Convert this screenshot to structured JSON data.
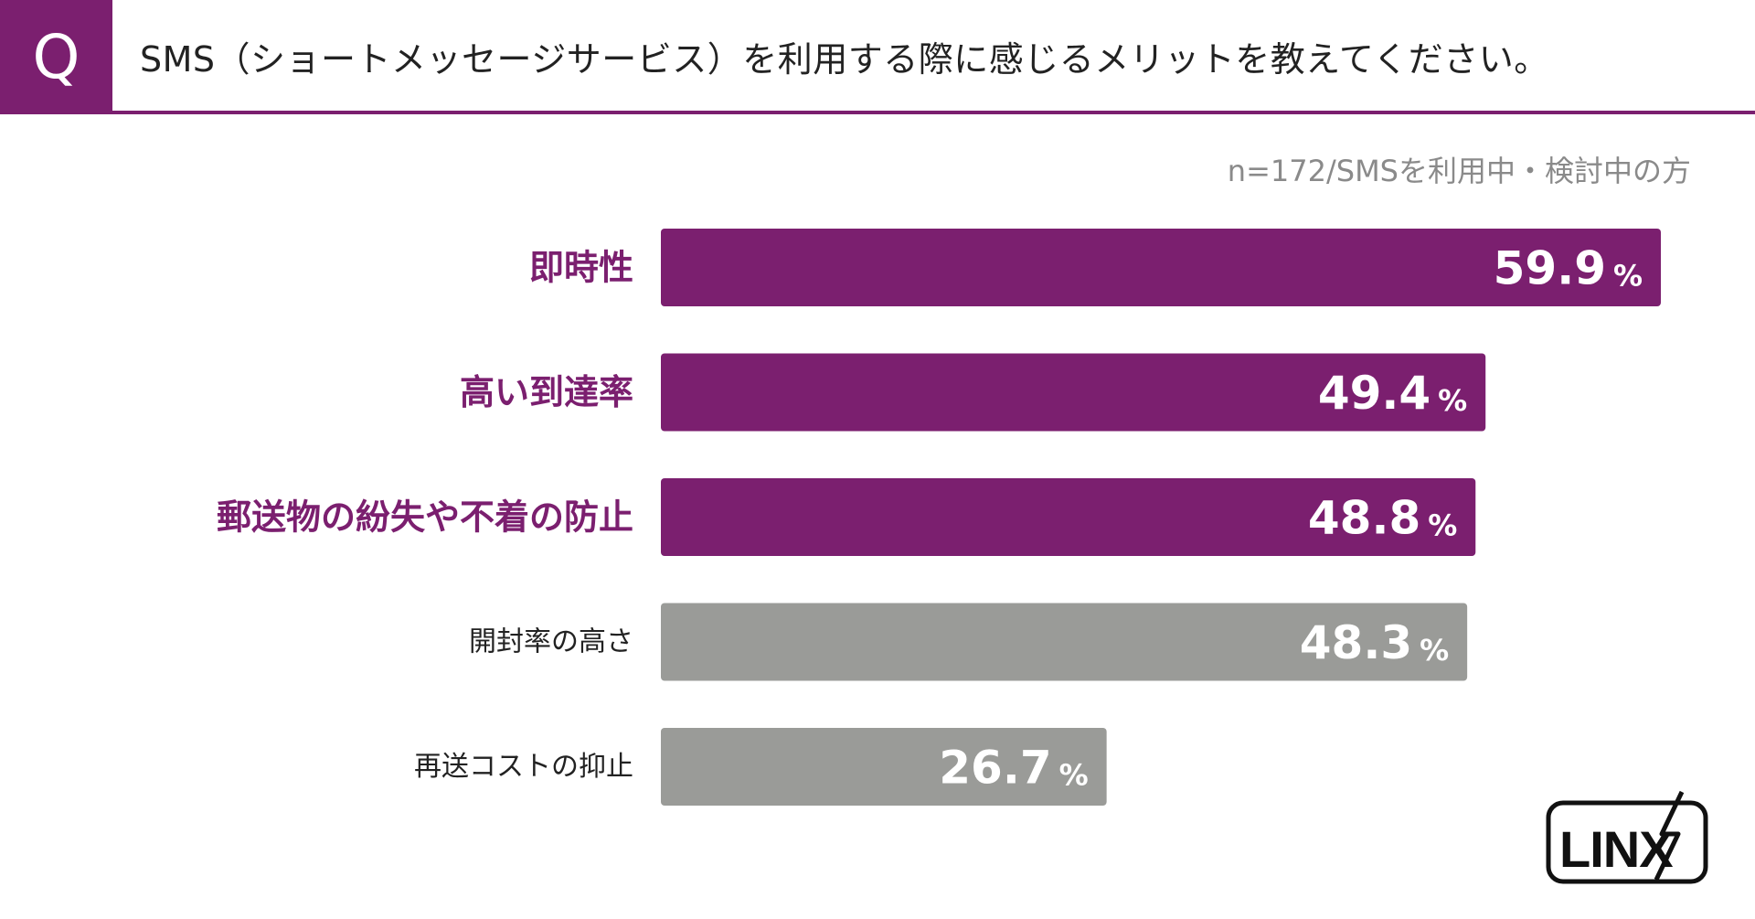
{
  "header": {
    "badge": "Q",
    "title": "SMS（ショートメッセージサービス）を利用する際に感じるメリットを教えてください。"
  },
  "note": "n=172/SMSを利用中・検討中の方",
  "brand": {
    "name": "LINX"
  },
  "colors": {
    "accent": "#7b1f6f",
    "muted": "#9a9b98",
    "label_highlight": "#7b1f6f",
    "label_plain": "#222222",
    "value_text": "#ffffff"
  },
  "chart_data": {
    "type": "bar",
    "orientation": "horizontal",
    "title": "SMS（ショートメッセージサービス）を利用する際に感じるメリットを教えてください。",
    "unit": "%",
    "xlim": [
      0,
      100
    ],
    "categories": [
      "即時性",
      "高い到達率",
      "郵送物の紛失や不着の防止",
      "開封率の高さ",
      "再送コストの抑止"
    ],
    "values": [
      59.9,
      49.4,
      48.8,
      48.3,
      26.7
    ],
    "value_labels": [
      "59.9",
      "49.4",
      "48.8",
      "48.3",
      "26.7"
    ],
    "highlighted": [
      true,
      true,
      true,
      false,
      false
    ]
  }
}
